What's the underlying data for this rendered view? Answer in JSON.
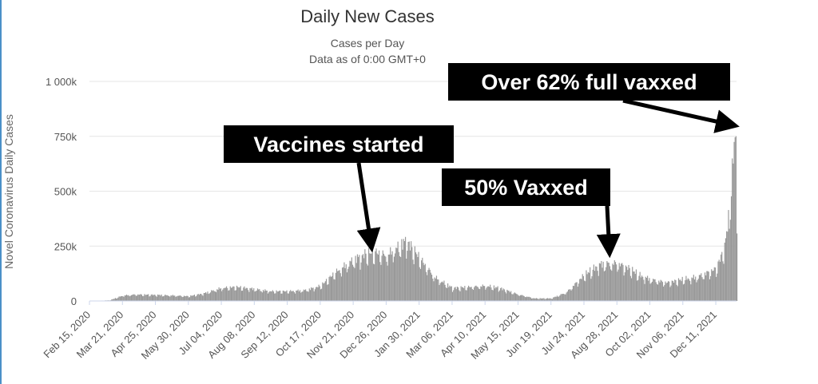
{
  "chart_data": {
    "type": "bar",
    "title": "Daily New Cases",
    "subtitle_1": "Cases per Day",
    "subtitle_2": "Data as of 0:00 GMT+0",
    "ylabel": "Novel Coronavirus Daily Cases",
    "xlabel": "",
    "ylim": [
      0,
      1000000
    ],
    "y_ticks": [
      {
        "value": 0,
        "label": "0"
      },
      {
        "value": 250000,
        "label": "250k"
      },
      {
        "value": 500000,
        "label": "500k"
      },
      {
        "value": 750000,
        "label": "750k"
      },
      {
        "value": 1000000,
        "label": "1 000k"
      }
    ],
    "x_range": [
      "2020-02-15",
      "2022-01-02"
    ],
    "x_ticks": [
      {
        "date": "2020-02-15",
        "label": "Feb 15, 2020"
      },
      {
        "date": "2020-03-21",
        "label": "Mar 21, 2020"
      },
      {
        "date": "2020-04-25",
        "label": "Apr 25, 2020"
      },
      {
        "date": "2020-05-30",
        "label": "May 30, 2020"
      },
      {
        "date": "2020-07-04",
        "label": "Jul 04, 2020"
      },
      {
        "date": "2020-08-08",
        "label": "Aug 08, 2020"
      },
      {
        "date": "2020-09-12",
        "label": "Sep 12, 2020"
      },
      {
        "date": "2020-10-17",
        "label": "Oct 17, 2020"
      },
      {
        "date": "2020-11-21",
        "label": "Nov 21, 2020"
      },
      {
        "date": "2020-12-26",
        "label": "Dec 26, 2020"
      },
      {
        "date": "2021-01-30",
        "label": "Jan 30, 2021"
      },
      {
        "date": "2021-03-06",
        "label": "Mar 06, 2021"
      },
      {
        "date": "2021-04-10",
        "label": "Apr 10, 2021"
      },
      {
        "date": "2021-05-15",
        "label": "May 15, 2021"
      },
      {
        "date": "2021-06-19",
        "label": "Jun 19, 2021"
      },
      {
        "date": "2021-07-24",
        "label": "Jul 24, 2021"
      },
      {
        "date": "2021-08-28",
        "label": "Aug 28, 2021"
      },
      {
        "date": "2021-10-02",
        "label": "Oct 02, 2021"
      },
      {
        "date": "2021-11-06",
        "label": "Nov 06, 2021"
      },
      {
        "date": "2021-12-11",
        "label": "Dec 11, 2021"
      }
    ],
    "grid": true,
    "legend": "none",
    "bar_color": "#999999",
    "series": [
      {
        "x": [
          "2020-02-15",
          "2020-03-07",
          "2020-03-21",
          "2020-04-04",
          "2020-04-25",
          "2020-05-15",
          "2020-05-30",
          "2020-06-15",
          "2020-07-04",
          "2020-07-20",
          "2020-08-08",
          "2020-08-25",
          "2020-09-12",
          "2020-10-01",
          "2020-10-17",
          "2020-11-01",
          "2020-11-21",
          "2020-12-05",
          "2020-12-15",
          "2020-12-26",
          "2021-01-08",
          "2021-01-16",
          "2021-01-30",
          "2021-02-15",
          "2021-03-06",
          "2021-03-25",
          "2021-04-10",
          "2021-04-25",
          "2021-05-15",
          "2021-06-01",
          "2021-06-19",
          "2021-07-05",
          "2021-07-24",
          "2021-08-10",
          "2021-08-28",
          "2021-09-10",
          "2021-09-20",
          "2021-10-02",
          "2021-10-20",
          "2021-11-06",
          "2021-11-20",
          "2021-12-01",
          "2021-12-11",
          "2021-12-20",
          "2021-12-24",
          "2021-12-27",
          "2021-12-29",
          "2021-12-31",
          "2022-01-01",
          "2022-01-02"
        ],
        "y": [
          0,
          3000,
          25000,
          30000,
          28000,
          25000,
          22000,
          35000,
          60000,
          65000,
          55000,
          45000,
          45000,
          50000,
          70000,
          130000,
          190000,
          220000,
          225000,
          210000,
          250000,
          280000,
          200000,
          110000,
          60000,
          65000,
          70000,
          60000,
          30000,
          12000,
          12000,
          40000,
          120000,
          170000,
          175000,
          150000,
          120000,
          100000,
          85000,
          100000,
          110000,
          130000,
          150000,
          250000,
          380000,
          520000,
          650000,
          800000,
          860000,
          420000
        ]
      }
    ]
  },
  "annotations": [
    {
      "text": "Vaccines started",
      "target_date": "2020-12-10",
      "target_value": 235000
    },
    {
      "text": "50% Vaxxed",
      "target_date": "2021-08-20",
      "target_value": 210000
    },
    {
      "text": "Over 62% full vaxxed",
      "target_date": "2021-12-28",
      "target_value": 780000
    }
  ],
  "colors": {
    "bars": "#999999",
    "grid": "#e6e6e6",
    "annotation_box": "#000000",
    "annotation_text": "#ffffff",
    "frame_left": "#4a90c8"
  }
}
